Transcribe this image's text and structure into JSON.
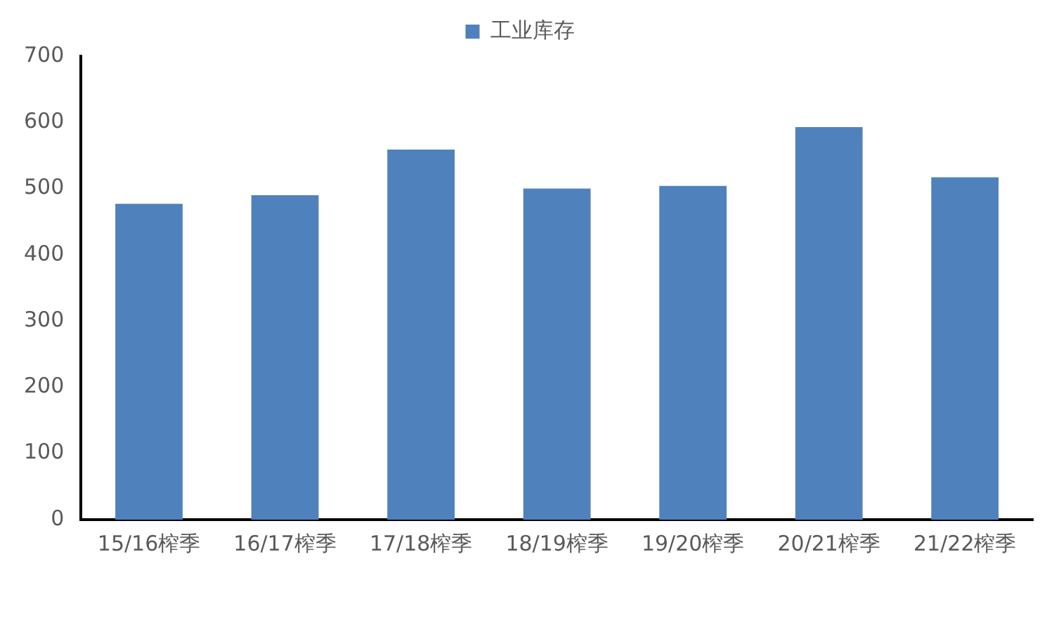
{
  "chart_data": {
    "type": "bar",
    "categories": [
      "15/16榨季",
      "16/17榨季",
      "17/18榨季",
      "18/19榨季",
      "19/20榨季",
      "20/21榨季",
      "21/22榨季"
    ],
    "series": [
      {
        "name": "工业库存",
        "color": "#4f81bd",
        "values": [
          477,
          490,
          559,
          500,
          504,
          593,
          517
        ]
      }
    ],
    "ylim": [
      0,
      700
    ],
    "yticks": [
      0,
      100,
      200,
      300,
      400,
      500,
      600,
      700
    ],
    "grid": false,
    "legend": "top"
  }
}
